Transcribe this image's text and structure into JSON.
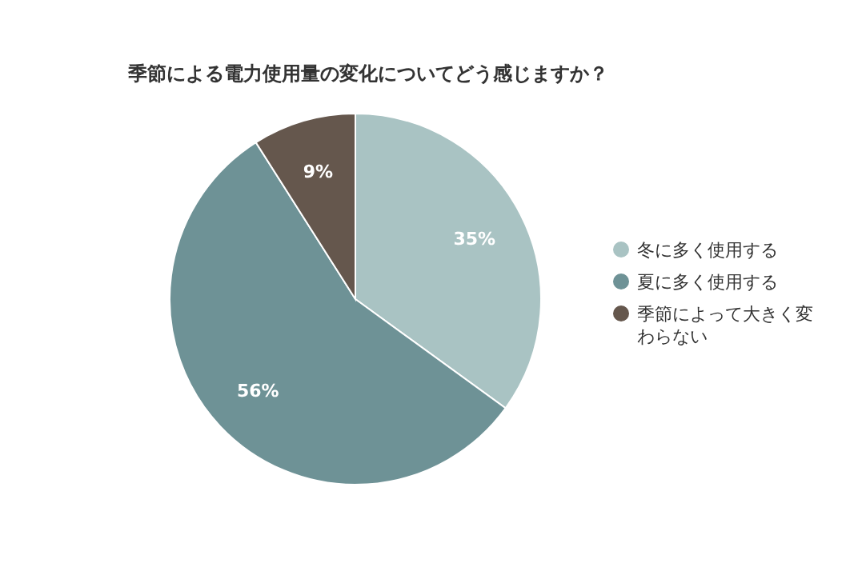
{
  "chart_data": {
    "type": "pie",
    "title": "季節による電力使用量の変化についてどう感じますか？",
    "categories": [
      "冬に多く使用する",
      "夏に多く使用する",
      "季節によって大きく変わらない"
    ],
    "values": [
      35,
      56,
      9
    ],
    "colors": [
      "#a9c3c3",
      "#6e9296",
      "#65574d"
    ],
    "value_labels": [
      "35%",
      "56%",
      "9%"
    ],
    "legend": "right"
  }
}
